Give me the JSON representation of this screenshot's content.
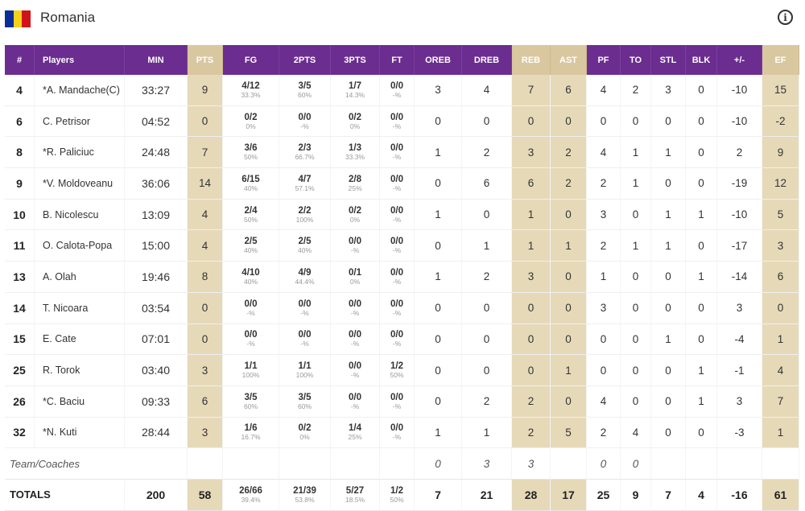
{
  "team": {
    "name": "Romania",
    "flag_colors": [
      "#0a2d9a",
      "#f4d11a",
      "#d2141a"
    ],
    "info_icon": "info-icon"
  },
  "colors": {
    "header": "#6b2d8f",
    "highlight_header": "#d9c7a0",
    "highlight_cell": "#e6d9b8"
  },
  "headers": [
    "#",
    "Players",
    "MIN",
    "PTS",
    "FG",
    "2PTS",
    "3PTS",
    "FT",
    "OREB",
    "DREB",
    "REB",
    "AST",
    "PF",
    "TO",
    "STL",
    "BLK",
    "+/-",
    "EF"
  ],
  "players": [
    {
      "num": "4",
      "name": "*A. Mandache(C)",
      "min": "33:27",
      "pts": "9",
      "fg": "4/12",
      "fg_pct": "33.3%",
      "p2": "3/5",
      "p2_pct": "60%",
      "p3": "1/7",
      "p3_pct": "14.3%",
      "ft": "0/0",
      "ft_pct": "-%",
      "oreb": "3",
      "dreb": "4",
      "reb": "7",
      "ast": "6",
      "pf": "4",
      "to": "2",
      "stl": "3",
      "blk": "0",
      "pm": "-10",
      "ef": "15"
    },
    {
      "num": "6",
      "name": "C. Petrisor",
      "min": "04:52",
      "pts": "0",
      "fg": "0/2",
      "fg_pct": "0%",
      "p2": "0/0",
      "p2_pct": "-%",
      "p3": "0/2",
      "p3_pct": "0%",
      "ft": "0/0",
      "ft_pct": "-%",
      "oreb": "0",
      "dreb": "0",
      "reb": "0",
      "ast": "0",
      "pf": "0",
      "to": "0",
      "stl": "0",
      "blk": "0",
      "pm": "-10",
      "ef": "-2"
    },
    {
      "num": "8",
      "name": "*R. Paliciuc",
      "min": "24:48",
      "pts": "7",
      "fg": "3/6",
      "fg_pct": "50%",
      "p2": "2/3",
      "p2_pct": "66.7%",
      "p3": "1/3",
      "p3_pct": "33.3%",
      "ft": "0/0",
      "ft_pct": "-%",
      "oreb": "1",
      "dreb": "2",
      "reb": "3",
      "ast": "2",
      "pf": "4",
      "to": "1",
      "stl": "1",
      "blk": "0",
      "pm": "2",
      "ef": "9"
    },
    {
      "num": "9",
      "name": "*V. Moldoveanu",
      "min": "36:06",
      "pts": "14",
      "fg": "6/15",
      "fg_pct": "40%",
      "p2": "4/7",
      "p2_pct": "57.1%",
      "p3": "2/8",
      "p3_pct": "25%",
      "ft": "0/0",
      "ft_pct": "-%",
      "oreb": "0",
      "dreb": "6",
      "reb": "6",
      "ast": "2",
      "pf": "2",
      "to": "1",
      "stl": "0",
      "blk": "0",
      "pm": "-19",
      "ef": "12"
    },
    {
      "num": "10",
      "name": "B. Nicolescu",
      "min": "13:09",
      "pts": "4",
      "fg": "2/4",
      "fg_pct": "50%",
      "p2": "2/2",
      "p2_pct": "100%",
      "p3": "0/2",
      "p3_pct": "0%",
      "ft": "0/0",
      "ft_pct": "-%",
      "oreb": "1",
      "dreb": "0",
      "reb": "1",
      "ast": "0",
      "pf": "3",
      "to": "0",
      "stl": "1",
      "blk": "1",
      "pm": "-10",
      "ef": "5"
    },
    {
      "num": "11",
      "name": "O. Calota-Popa",
      "min": "15:00",
      "pts": "4",
      "fg": "2/5",
      "fg_pct": "40%",
      "p2": "2/5",
      "p2_pct": "40%",
      "p3": "0/0",
      "p3_pct": "-%",
      "ft": "0/0",
      "ft_pct": "-%",
      "oreb": "0",
      "dreb": "1",
      "reb": "1",
      "ast": "1",
      "pf": "2",
      "to": "1",
      "stl": "1",
      "blk": "0",
      "pm": "-17",
      "ef": "3"
    },
    {
      "num": "13",
      "name": "A. Olah",
      "min": "19:46",
      "pts": "8",
      "fg": "4/10",
      "fg_pct": "40%",
      "p2": "4/9",
      "p2_pct": "44.4%",
      "p3": "0/1",
      "p3_pct": "0%",
      "ft": "0/0",
      "ft_pct": "-%",
      "oreb": "1",
      "dreb": "2",
      "reb": "3",
      "ast": "0",
      "pf": "1",
      "to": "0",
      "stl": "0",
      "blk": "1",
      "pm": "-14",
      "ef": "6"
    },
    {
      "num": "14",
      "name": "T. Nicoara",
      "min": "03:54",
      "pts": "0",
      "fg": "0/0",
      "fg_pct": "-%",
      "p2": "0/0",
      "p2_pct": "-%",
      "p3": "0/0",
      "p3_pct": "-%",
      "ft": "0/0",
      "ft_pct": "-%",
      "oreb": "0",
      "dreb": "0",
      "reb": "0",
      "ast": "0",
      "pf": "3",
      "to": "0",
      "stl": "0",
      "blk": "0",
      "pm": "3",
      "ef": "0"
    },
    {
      "num": "15",
      "name": "E. Cate",
      "min": "07:01",
      "pts": "0",
      "fg": "0/0",
      "fg_pct": "-%",
      "p2": "0/0",
      "p2_pct": "-%",
      "p3": "0/0",
      "p3_pct": "-%",
      "ft": "0/0",
      "ft_pct": "-%",
      "oreb": "0",
      "dreb": "0",
      "reb": "0",
      "ast": "0",
      "pf": "0",
      "to": "0",
      "stl": "1",
      "blk": "0",
      "pm": "-4",
      "ef": "1"
    },
    {
      "num": "25",
      "name": "R. Torok",
      "min": "03:40",
      "pts": "3",
      "fg": "1/1",
      "fg_pct": "100%",
      "p2": "1/1",
      "p2_pct": "100%",
      "p3": "0/0",
      "p3_pct": "-%",
      "ft": "1/2",
      "ft_pct": "50%",
      "oreb": "0",
      "dreb": "0",
      "reb": "0",
      "ast": "1",
      "pf": "0",
      "to": "0",
      "stl": "0",
      "blk": "1",
      "pm": "-1",
      "ef": "4"
    },
    {
      "num": "26",
      "name": "*C. Baciu",
      "min": "09:33",
      "pts": "6",
      "fg": "3/5",
      "fg_pct": "60%",
      "p2": "3/5",
      "p2_pct": "60%",
      "p3": "0/0",
      "p3_pct": "-%",
      "ft": "0/0",
      "ft_pct": "-%",
      "oreb": "0",
      "dreb": "2",
      "reb": "2",
      "ast": "0",
      "pf": "4",
      "to": "0",
      "stl": "0",
      "blk": "1",
      "pm": "3",
      "ef": "7"
    },
    {
      "num": "32",
      "name": "*N. Kuti",
      "min": "28:44",
      "pts": "3",
      "fg": "1/6",
      "fg_pct": "16.7%",
      "p2": "0/2",
      "p2_pct": "0%",
      "p3": "1/4",
      "p3_pct": "25%",
      "ft": "0/0",
      "ft_pct": "-%",
      "oreb": "1",
      "dreb": "1",
      "reb": "2",
      "ast": "5",
      "pf": "2",
      "to": "4",
      "stl": "0",
      "blk": "0",
      "pm": "-3",
      "ef": "1"
    }
  ],
  "team_row": {
    "label": "Team/Coaches",
    "oreb": "0",
    "dreb": "3",
    "reb": "3",
    "pf": "0",
    "to": "0"
  },
  "totals": {
    "label": "TOTALS",
    "min": "200",
    "pts": "58",
    "fg": "26/66",
    "fg_pct": "39.4%",
    "p2": "21/39",
    "p2_pct": "53.8%",
    "p3": "5/27",
    "p3_pct": "18.5%",
    "ft": "1/2",
    "ft_pct": "50%",
    "oreb": "7",
    "dreb": "21",
    "reb": "28",
    "ast": "17",
    "pf": "25",
    "to": "9",
    "stl": "7",
    "blk": "4",
    "pm": "-16",
    "ef": "61"
  }
}
